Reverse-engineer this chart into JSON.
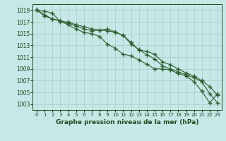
{
  "x": [
    0,
    1,
    2,
    3,
    4,
    5,
    6,
    7,
    8,
    9,
    10,
    11,
    12,
    13,
    14,
    15,
    16,
    17,
    18,
    19,
    20,
    21,
    22,
    23
  ],
  "line1": [
    1019,
    1018.8,
    1018.5,
    1017.0,
    1017.0,
    1016.5,
    1016.2,
    1015.8,
    1015.6,
    1015.5,
    1015.2,
    1014.7,
    1013.2,
    1012.3,
    1011.4,
    1010.7,
    1009.5,
    1009.0,
    1008.5,
    1008.0,
    1007.5,
    1006.8,
    1004.8,
    1003.2
  ],
  "line2": [
    1019,
    1018.2,
    1017.5,
    1017.2,
    1016.8,
    1016.3,
    1015.8,
    1015.5,
    1015.6,
    1015.8,
    1015.3,
    1014.7,
    1013.5,
    1012.2,
    1012.0,
    1011.5,
    1010.2,
    1009.7,
    1009.0,
    1008.3,
    1007.8,
    1007.0,
    1006.0,
    1004.5
  ],
  "line3": [
    1019,
    1018.0,
    1017.5,
    1017.1,
    1016.5,
    1015.8,
    1015.2,
    1015.0,
    1014.5,
    1013.2,
    1012.5,
    1011.5,
    1011.2,
    1010.5,
    1009.8,
    1009.0,
    1009.0,
    1008.8,
    1008.2,
    1007.8,
    1006.8,
    1005.2,
    1003.2,
    1004.8
  ],
  "line_color": "#2d5e2d",
  "bg_color": "#c8e8e8",
  "grid_color": "#aacaca",
  "tick_color": "#1a4a1a",
  "xlabel": "Graphe pression niveau de la mer (hPa)",
  "ylim": [
    1002,
    1020
  ],
  "yticks": [
    1003,
    1005,
    1007,
    1009,
    1011,
    1013,
    1015,
    1017,
    1019
  ],
  "xticks": [
    0,
    1,
    2,
    3,
    4,
    5,
    6,
    7,
    8,
    9,
    10,
    11,
    12,
    13,
    14,
    15,
    16,
    17,
    18,
    19,
    20,
    21,
    22,
    23
  ],
  "marker": "+",
  "markersize": 4,
  "linewidth": 0.8
}
